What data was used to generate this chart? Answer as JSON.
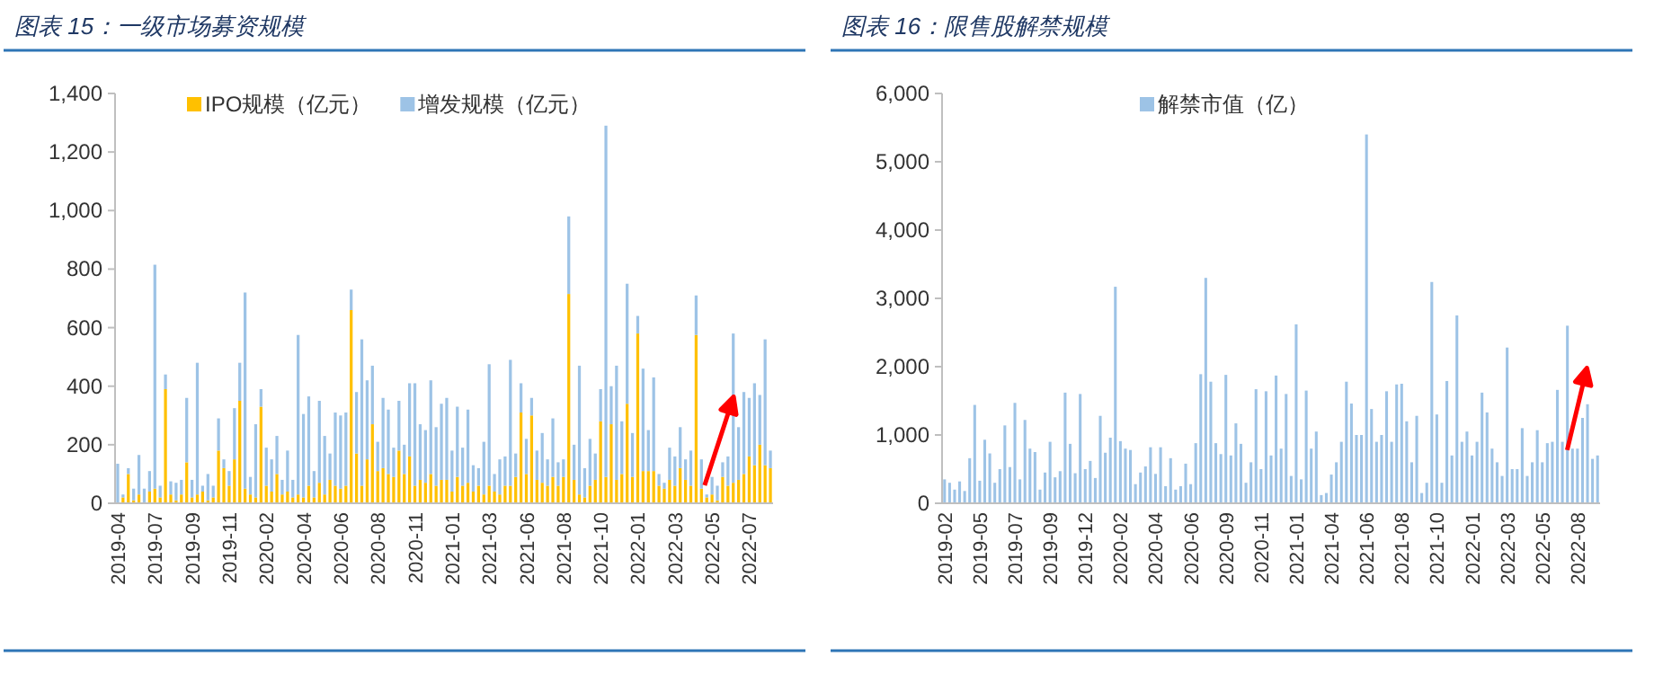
{
  "chart_data": [
    {
      "type": "bar",
      "title": "图表 15：一级市场募资规模",
      "stacked": true,
      "legend": "top",
      "categories": [
        "2019-04",
        null,
        null,
        null,
        null,
        null,
        null,
        "2019-07",
        null,
        null,
        null,
        null,
        null,
        null,
        "2019-09",
        null,
        null,
        null,
        null,
        null,
        null,
        "2019-11",
        null,
        null,
        null,
        null,
        null,
        null,
        "2020-02",
        null,
        null,
        null,
        null,
        null,
        null,
        "2020-04",
        null,
        null,
        null,
        null,
        null,
        null,
        "2020-06",
        null,
        null,
        null,
        null,
        null,
        null,
        "2020-08",
        null,
        null,
        null,
        null,
        null,
        null,
        "2020-11",
        null,
        null,
        null,
        null,
        null,
        null,
        "2021-01",
        null,
        null,
        null,
        null,
        null,
        null,
        "2021-03",
        null,
        null,
        null,
        null,
        null,
        null,
        "2021-06",
        null,
        null,
        null,
        null,
        null,
        null,
        "2021-08",
        null,
        null,
        null,
        null,
        null,
        null,
        "2021-10",
        null,
        null,
        null,
        null,
        null,
        null,
        "2022-01",
        null,
        null,
        null,
        null,
        null,
        null,
        "2022-03",
        null,
        null,
        null,
        null,
        null,
        null,
        "2022-05",
        null,
        null,
        null,
        null,
        null,
        null,
        "2022-07",
        null,
        null,
        null,
        null
      ],
      "series": [
        {
          "name": "IPO规模（亿元）",
          "color": "#ffc000",
          "values": [
            null,
            20,
            100,
            10,
            30,
            null,
            40,
            50,
            20,
            390,
            30,
            10,
            30,
            140,
            20,
            30,
            40,
            10,
            20,
            180,
            120,
            60,
            150,
            350,
            50,
            30,
            20,
            330,
            60,
            40,
            100,
            30,
            40,
            20,
            30,
            20,
            60,
            20,
            70,
            30,
            80,
            60,
            50,
            60,
            660,
            170,
            60,
            150,
            270,
            110,
            120,
            100,
            90,
            180,
            100,
            160,
            60,
            80,
            70,
            100,
            60,
            80,
            80,
            40,
            90,
            60,
            70,
            40,
            60,
            30,
            60,
            40,
            30,
            60,
            60,
            90,
            310,
            100,
            300,
            80,
            70,
            60,
            90,
            60,
            90,
            715,
            80,
            30,
            20,
            60,
            80,
            280,
            90,
            270,
            80,
            100,
            340,
            90,
            580,
            110,
            110,
            110,
            60,
            50,
            80,
            60,
            120,
            80,
            60,
            575,
            50,
            20,
            30,
            10,
            90,
            60,
            70,
            80,
            100,
            160,
            130,
            200,
            130,
            120
          ]
        },
        {
          "name": "增发规模（亿元）",
          "color": "#9dc3e6",
          "values": [
            135,
            10,
            20,
            40,
            135,
            50,
            70,
            765,
            40,
            50,
            45,
            60,
            50,
            220,
            60,
            450,
            20,
            90,
            40,
            110,
            30,
            50,
            175,
            130,
            670,
            60,
            250,
            60,
            130,
            110,
            130,
            50,
            140,
            60,
            545,
            285,
            305,
            90,
            280,
            200,
            90,
            250,
            250,
            250,
            70,
            210,
            500,
            270,
            200,
            100,
            240,
            220,
            100,
            170,
            100,
            250,
            350,
            190,
            180,
            320,
            200,
            260,
            280,
            140,
            240,
            130,
            250,
            90,
            60,
            180,
            415,
            60,
            120,
            100,
            430,
            80,
            100,
            120,
            60,
            100,
            170,
            90,
            200,
            80,
            60,
            265,
            120,
            440,
            100,
            160,
            90,
            110,
            1200,
            130,
            390,
            180,
            410,
            150,
            60,
            350,
            140,
            320,
            40,
            20,
            110,
            100,
            140,
            70,
            120,
            135,
            100,
            10,
            60,
            50,
            50,
            100,
            510,
            180,
            280,
            200,
            280,
            170,
            430,
            60
          ]
        }
      ],
      "ylim": [
        0,
        1400
      ],
      "yticks": [
        0,
        200,
        400,
        600,
        800,
        {
          "value": 1000,
          "label": "1,000"
        },
        {
          "value": 1200,
          "label": "1,200"
        },
        {
          "value": 1400,
          "label": "1,400"
        }
      ]
    },
    {
      "type": "bar",
      "title": "图表 16：限售股解禁规模",
      "legend": "top",
      "categories": [
        "2019-02",
        null,
        null,
        null,
        null,
        null,
        null,
        "2019-05",
        null,
        null,
        null,
        null,
        null,
        null,
        "2019-07",
        null,
        null,
        null,
        null,
        null,
        null,
        "2019-09",
        null,
        null,
        null,
        null,
        null,
        null,
        "2019-12",
        null,
        null,
        null,
        null,
        null,
        null,
        "2020-02",
        null,
        null,
        null,
        null,
        null,
        null,
        "2020-04",
        null,
        null,
        null,
        null,
        null,
        null,
        "2020-06",
        null,
        null,
        null,
        null,
        null,
        null,
        "2020-09",
        null,
        null,
        null,
        null,
        null,
        null,
        "2020-11",
        null,
        null,
        null,
        null,
        null,
        null,
        "2021-01",
        null,
        null,
        null,
        null,
        null,
        null,
        "2021-04",
        null,
        null,
        null,
        null,
        null,
        null,
        "2021-06",
        null,
        null,
        null,
        null,
        null,
        null,
        "2021-08",
        null,
        null,
        null,
        null,
        null,
        null,
        "2021-10",
        null,
        null,
        null,
        null,
        null,
        null,
        "2022-01",
        null,
        null,
        null,
        null,
        null,
        null,
        "2022-03",
        null,
        null,
        null,
        null,
        null,
        null,
        "2022-05",
        null,
        null,
        null,
        null,
        null,
        null,
        "2022-08",
        null,
        null,
        null,
        null
      ],
      "series": [
        {
          "name": "解禁市值（亿）",
          "color": "#9dc3e6",
          "values": [
            350,
            300,
            200,
            320,
            180,
            660,
            1440,
            330,
            930,
            730,
            300,
            500,
            1140,
            530,
            1470,
            350,
            1220,
            800,
            750,
            200,
            450,
            900,
            380,
            470,
            1620,
            870,
            440,
            1600,
            500,
            620,
            370,
            1280,
            740,
            960,
            3170,
            910,
            800,
            780,
            280,
            450,
            540,
            820,
            430,
            820,
            250,
            660,
            200,
            250,
            580,
            280,
            880,
            1890,
            3300,
            1780,
            880,
            720,
            1880,
            700,
            1170,
            870,
            300,
            600,
            1670,
            500,
            1640,
            700,
            1870,
            800,
            1600,
            400,
            2620,
            350,
            1650,
            800,
            1050,
            120,
            150,
            420,
            600,
            900,
            1780,
            1460,
            1000,
            1000,
            5400,
            1380,
            900,
            1000,
            1640,
            900,
            1740,
            1750,
            1200,
            600,
            1280,
            150,
            300,
            3240,
            1300,
            300,
            1790,
            700,
            2750,
            900,
            1050,
            700,
            900,
            1620,
            1330,
            800,
            600,
            400,
            2280,
            500,
            500,
            1100,
            400,
            600,
            1070,
            600,
            880,
            900,
            1660,
            900,
            2600,
            800,
            800,
            1250,
            1450,
            650,
            700
          ]
        }
      ],
      "ylim": [
        0,
        6000
      ],
      "yticks": [
        0,
        {
          "value": 1000,
          "label": "1,000"
        },
        {
          "value": 2000,
          "label": "2,000"
        },
        {
          "value": 3000,
          "label": "3,000"
        },
        {
          "value": 4000,
          "label": "4,000"
        },
        {
          "value": 5000,
          "label": "5,000"
        },
        {
          "value": 6000,
          "label": "6,000"
        }
      ]
    }
  ]
}
